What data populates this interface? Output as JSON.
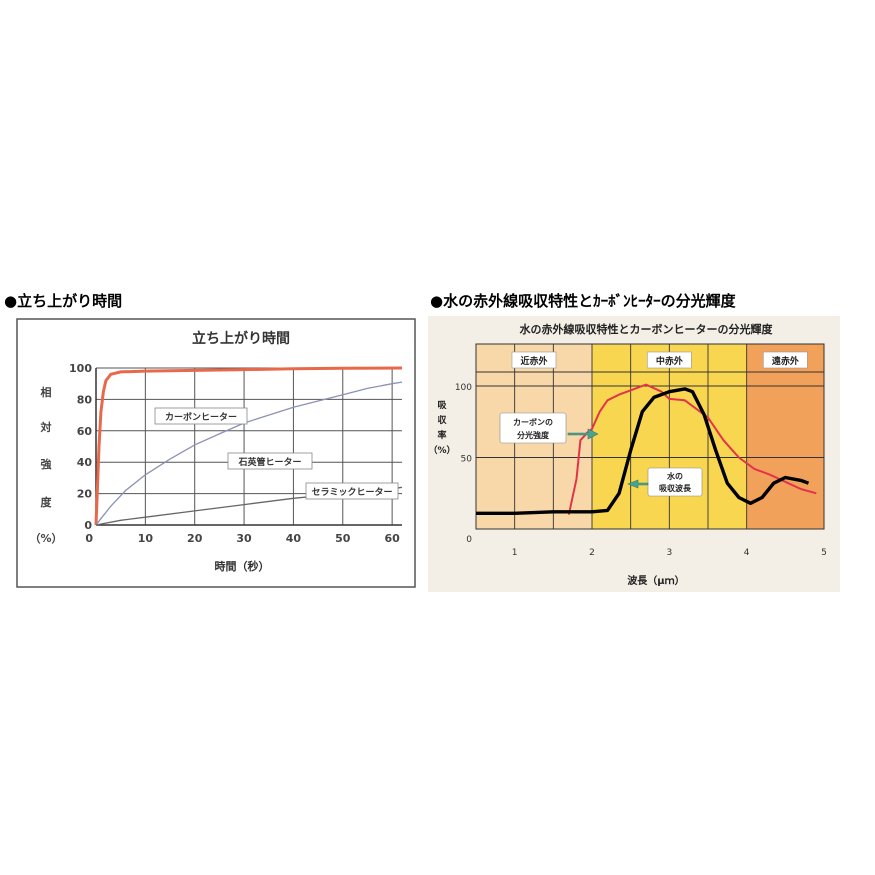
{
  "headings": {
    "left": "●立ち上がり時間",
    "right": "●水の赤外線吸収特性とｶｰﾎﾞﾝﾋｰﾀｰの分光輝度"
  },
  "chart_data": [
    {
      "type": "line",
      "title": "立ち上がり時間",
      "xlabel": "時間（秒）",
      "ylabel": [
        "相",
        "対",
        "強",
        "度",
        "（%）"
      ],
      "xlim": [
        0,
        62
      ],
      "ylim": [
        0,
        100
      ],
      "x_ticks": [
        10,
        20,
        30,
        40,
        50,
        60
      ],
      "y_ticks": [
        0,
        20,
        40,
        60,
        80,
        100
      ],
      "grid": true,
      "colors": {
        "frame_bg": "#ffffff",
        "grid": "#555555"
      },
      "series": [
        {
          "name": "カーボンヒーター",
          "color": "#e8694a",
          "points": [
            [
              0,
              0
            ],
            [
              0.3,
              25
            ],
            [
              0.6,
              50
            ],
            [
              1,
              72
            ],
            [
              1.5,
              85
            ],
            [
              2,
              92
            ],
            [
              3,
              96
            ],
            [
              5,
              97.5
            ],
            [
              10,
              98
            ],
            [
              20,
              98.5
            ],
            [
              30,
              99
            ],
            [
              40,
              99.5
            ],
            [
              50,
              99.8
            ],
            [
              62,
              100
            ]
          ]
        },
        {
          "name": "石英管ヒーター",
          "color": "#8b91b8",
          "points": [
            [
              0,
              0
            ],
            [
              1,
              4
            ],
            [
              3,
              12
            ],
            [
              6,
              22
            ],
            [
              10,
              32
            ],
            [
              15,
              42
            ],
            [
              20,
              51
            ],
            [
              25,
              58
            ],
            [
              30,
              65
            ],
            [
              35,
              70
            ],
            [
              40,
              75
            ],
            [
              45,
              79
            ],
            [
              50,
              83
            ],
            [
              55,
              87
            ],
            [
              60,
              90
            ],
            [
              62,
              91
            ]
          ]
        },
        {
          "name": "セラミックヒーター",
          "color": "#666666",
          "points": [
            [
              0,
              0
            ],
            [
              5,
              3
            ],
            [
              10,
              5
            ],
            [
              20,
              9
            ],
            [
              30,
              13
            ],
            [
              40,
              17
            ],
            [
              50,
              20
            ],
            [
              60,
              23
            ],
            [
              62,
              24
            ]
          ]
        }
      ]
    },
    {
      "type": "line",
      "title": "水の赤外線吸収特性とカーボンヒーターの分光輝度",
      "xlabel": "波長（μｍ）",
      "ylabel": [
        "吸",
        "収",
        "率",
        "（%）"
      ],
      "xlim": [
        0.5,
        5
      ],
      "ylim": [
        0,
        100
      ],
      "x_ticks": [
        1,
        2,
        3,
        4,
        5
      ],
      "y_ticks": [
        0,
        50,
        100
      ],
      "grid": true,
      "regions": [
        {
          "label": "近赤外",
          "from": 0.5,
          "to": 2.0,
          "color": "#f8d8a8"
        },
        {
          "label": "中赤外",
          "from": 2.0,
          "to": 4.0,
          "color": "#f9d650"
        },
        {
          "label": "遠赤外",
          "from": 4.0,
          "to": 5.0,
          "color": "#f2a15a"
        }
      ],
      "annotations": [
        {
          "text": [
            "カーボンの",
            "分光強度"
          ],
          "points_to": "カーボンの分光強度"
        },
        {
          "text": [
            "水の",
            "吸収波長"
          ],
          "points_to": "水の吸収波長"
        }
      ],
      "series": [
        {
          "name": "カーボンの分光強度",
          "color": "#e2334b",
          "points": [
            [
              1.7,
              10
            ],
            [
              1.8,
              35
            ],
            [
              1.85,
              62
            ],
            [
              1.95,
              68
            ],
            [
              2.0,
              70
            ],
            [
              2.1,
              82
            ],
            [
              2.2,
              90
            ],
            [
              2.35,
              94
            ],
            [
              2.5,
              97
            ],
            [
              2.7,
              101
            ],
            [
              2.9,
              96
            ],
            [
              3.0,
              91
            ],
            [
              3.2,
              90
            ],
            [
              3.5,
              78
            ],
            [
              3.7,
              62
            ],
            [
              3.9,
              50
            ],
            [
              4.1,
              42
            ],
            [
              4.3,
              38
            ],
            [
              4.5,
              33
            ],
            [
              4.7,
              28
            ],
            [
              4.9,
              25
            ]
          ]
        },
        {
          "name": "水の吸収波長",
          "color": "#000000",
          "points": [
            [
              0.5,
              11
            ],
            [
              1.0,
              11
            ],
            [
              1.5,
              12
            ],
            [
              1.75,
              12
            ],
            [
              2.0,
              12
            ],
            [
              2.2,
              13
            ],
            [
              2.35,
              25
            ],
            [
              2.5,
              55
            ],
            [
              2.65,
              82
            ],
            [
              2.8,
              92
            ],
            [
              3.0,
              96
            ],
            [
              3.2,
              98
            ],
            [
              3.3,
              96
            ],
            [
              3.45,
              80
            ],
            [
              3.6,
              55
            ],
            [
              3.75,
              32
            ],
            [
              3.9,
              22
            ],
            [
              4.05,
              18
            ],
            [
              4.2,
              22
            ],
            [
              4.35,
              32
            ],
            [
              4.5,
              36
            ],
            [
              4.7,
              34
            ],
            [
              4.8,
              32
            ]
          ]
        }
      ]
    }
  ]
}
